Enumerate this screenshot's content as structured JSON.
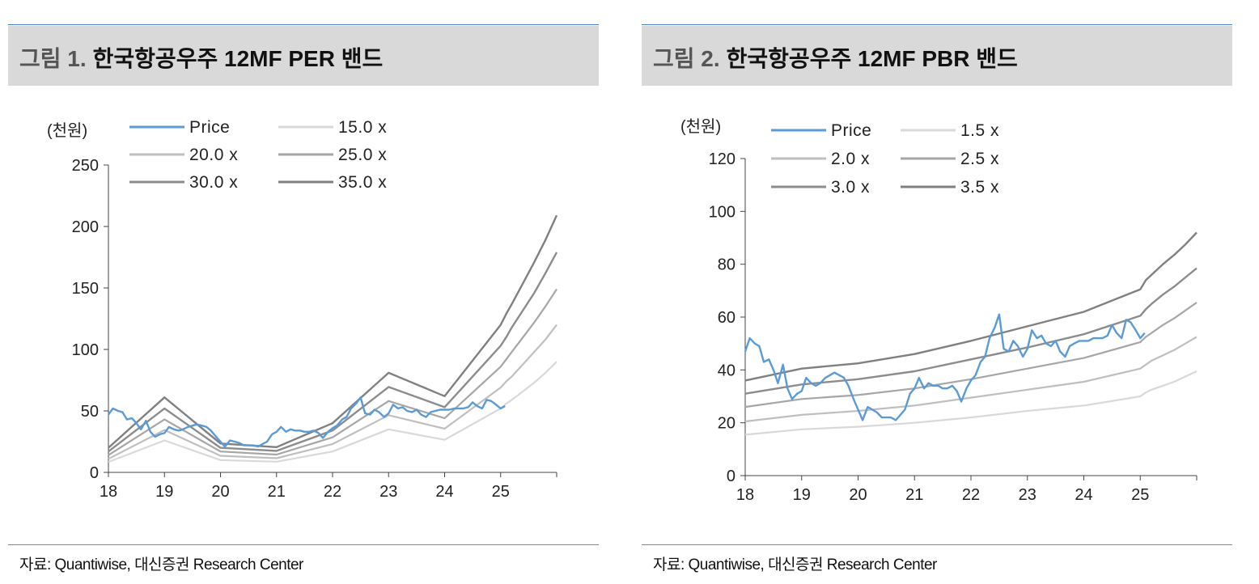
{
  "panels": [
    {
      "prefix": "그림 1.",
      "title": "한국항공우주 12MF PER 밴드",
      "source": "자료: Quantiwise, 대신증권 Research Center"
    },
    {
      "prefix": "그림 2.",
      "title": "한국항공우주 12MF PBR 밴드",
      "source": "자료: Quantiwise, 대신증권 Research Center"
    }
  ],
  "colors": {
    "price": "#5b9bd5",
    "band_light": "#d9d9d9",
    "band_mid1": "#bfbfbf",
    "band_mid2": "#a6a6a6",
    "band_dark1": "#808080",
    "band_dark2": "#7f7f7f"
  },
  "chart_data": [
    {
      "type": "line",
      "unit_label": "(천원)",
      "x_ticks": [
        "18",
        "19",
        "20",
        "21",
        "22",
        "23",
        "24",
        "25"
      ],
      "xlim": [
        2018,
        2026
      ],
      "ylim": [
        0,
        250
      ],
      "y_ticks": [
        0,
        50,
        100,
        150,
        200,
        250
      ],
      "legend_position": "top-left",
      "series": [
        {
          "name": "Price",
          "color": "#5b9bd5",
          "width": 2.4,
          "x": [
            2018.0,
            2018.08,
            2018.17,
            2018.25,
            2018.33,
            2018.42,
            2018.5,
            2018.58,
            2018.67,
            2018.75,
            2018.83,
            2018.92,
            2019.0,
            2019.08,
            2019.17,
            2019.25,
            2019.33,
            2019.42,
            2019.5,
            2019.58,
            2019.67,
            2019.75,
            2019.83,
            2019.92,
            2020.0,
            2020.08,
            2020.17,
            2020.25,
            2020.33,
            2020.42,
            2020.5,
            2020.58,
            2020.67,
            2020.75,
            2020.83,
            2020.92,
            2021.0,
            2021.08,
            2021.17,
            2021.25,
            2021.33,
            2021.42,
            2021.5,
            2021.58,
            2021.67,
            2021.75,
            2021.83,
            2021.92,
            2022.0,
            2022.08,
            2022.17,
            2022.25,
            2022.33,
            2022.42,
            2022.5,
            2022.58,
            2022.67,
            2022.75,
            2022.83,
            2022.92,
            2023.0,
            2023.08,
            2023.17,
            2023.25,
            2023.33,
            2023.42,
            2023.5,
            2023.58,
            2023.67,
            2023.75,
            2023.83,
            2023.92,
            2024.0,
            2024.08,
            2024.17,
            2024.25,
            2024.33,
            2024.42,
            2024.5,
            2024.58,
            2024.67,
            2024.75,
            2024.83,
            2024.92,
            2025.0,
            2025.08
          ],
          "y": [
            47,
            52,
            50,
            49,
            43,
            44,
            40,
            35,
            42,
            33,
            29,
            31,
            32,
            37,
            35,
            34,
            35,
            37,
            38,
            39,
            38,
            37,
            34,
            29,
            25,
            21,
            26,
            25,
            24,
            22,
            22,
            22,
            21,
            23,
            25,
            31,
            33,
            37,
            33,
            35,
            34,
            34,
            33,
            33,
            34,
            32,
            28,
            33,
            36,
            38,
            43,
            45,
            52,
            56,
            61,
            48,
            47,
            51,
            49,
            45,
            48,
            55,
            52,
            53,
            50,
            49,
            51,
            47,
            45,
            49,
            50,
            51,
            51,
            51,
            52,
            52,
            52,
            53,
            57,
            54,
            52,
            59,
            58,
            55,
            52,
            54
          ]
        },
        {
          "name": "15.0 x",
          "color": "#d9d9d9",
          "width": 2.2,
          "x": [
            2018,
            2019,
            2020,
            2021,
            2022,
            2023,
            2024,
            2025,
            2025.1,
            2025.2,
            2025.4,
            2025.6,
            2025.8,
            2026
          ],
          "y": [
            8.5,
            26,
            10,
            8.7,
            17,
            35,
            26.5,
            52,
            56,
            59,
            66,
            73,
            81,
            90
          ]
        },
        {
          "name": "20.0 x",
          "color": "#bfbfbf",
          "width": 2.2,
          "x": [
            2018,
            2019,
            2020,
            2021,
            2022,
            2023,
            2024,
            2025,
            2025.1,
            2025.2,
            2025.4,
            2025.6,
            2025.8,
            2026
          ],
          "y": [
            11,
            34.5,
            13.5,
            11.5,
            23,
            46.5,
            35.5,
            69,
            74,
            78,
            88,
            98,
            108,
            120
          ]
        },
        {
          "name": "25.0 x",
          "color": "#a6a6a6",
          "width": 2.2,
          "x": [
            2018,
            2019,
            2020,
            2021,
            2022,
            2023,
            2024,
            2025,
            2025.1,
            2025.2,
            2025.4,
            2025.6,
            2025.8,
            2026
          ],
          "y": [
            14,
            43,
            17,
            14.5,
            28.5,
            58,
            44,
            86,
            92,
            98,
            110,
            122,
            135,
            149
          ]
        },
        {
          "name": "30.0 x",
          "color": "#8c8c8c",
          "width": 2.4,
          "x": [
            2018,
            2019,
            2020,
            2021,
            2022,
            2023,
            2024,
            2025,
            2025.1,
            2025.2,
            2025.4,
            2025.6,
            2025.8,
            2026
          ],
          "y": [
            17,
            52,
            20,
            17.5,
            34,
            69.5,
            53,
            103,
            110,
            118,
            132,
            146,
            162,
            179
          ]
        },
        {
          "name": "35.0 x",
          "color": "#808080",
          "width": 2.4,
          "x": [
            2018,
            2019,
            2020,
            2021,
            2022,
            2023,
            2024,
            2025,
            2025.1,
            2025.2,
            2025.4,
            2025.6,
            2025.8,
            2026
          ],
          "y": [
            20,
            61,
            23.5,
            20.5,
            40,
            81,
            62,
            120,
            129,
            137,
            154,
            171,
            189,
            209
          ]
        }
      ],
      "legend": [
        [
          "Price",
          "15.0 x"
        ],
        [
          "20.0 x",
          "25.0 x"
        ],
        [
          "30.0 x",
          "35.0 x"
        ]
      ]
    },
    {
      "type": "line",
      "unit_label": "(천원)",
      "x_ticks": [
        "18",
        "19",
        "20",
        "21",
        "22",
        "23",
        "24",
        "25"
      ],
      "xlim": [
        2018,
        2026
      ],
      "ylim": [
        0,
        120
      ],
      "y_ticks": [
        0,
        20,
        40,
        60,
        80,
        100,
        120
      ],
      "legend_position": "top-left",
      "series": [
        {
          "name": "Price",
          "color": "#5b9bd5",
          "width": 2.4,
          "x": [
            2018.0,
            2018.08,
            2018.17,
            2018.25,
            2018.33,
            2018.42,
            2018.5,
            2018.58,
            2018.67,
            2018.75,
            2018.83,
            2018.92,
            2019.0,
            2019.08,
            2019.17,
            2019.25,
            2019.33,
            2019.42,
            2019.5,
            2019.58,
            2019.67,
            2019.75,
            2019.83,
            2019.92,
            2020.0,
            2020.08,
            2020.17,
            2020.25,
            2020.33,
            2020.42,
            2020.5,
            2020.58,
            2020.67,
            2020.75,
            2020.83,
            2020.92,
            2021.0,
            2021.08,
            2021.17,
            2021.25,
            2021.33,
            2021.42,
            2021.5,
            2021.58,
            2021.67,
            2021.75,
            2021.83,
            2021.92,
            2022.0,
            2022.08,
            2022.17,
            2022.25,
            2022.33,
            2022.42,
            2022.5,
            2022.58,
            2022.67,
            2022.75,
            2022.83,
            2022.92,
            2023.0,
            2023.08,
            2023.17,
            2023.25,
            2023.33,
            2023.42,
            2023.5,
            2023.58,
            2023.67,
            2023.75,
            2023.83,
            2023.92,
            2024.0,
            2024.08,
            2024.17,
            2024.25,
            2024.33,
            2024.42,
            2024.5,
            2024.58,
            2024.67,
            2024.75,
            2024.83,
            2024.92,
            2025.0,
            2025.08
          ],
          "y": [
            47,
            52,
            50,
            49,
            43,
            44,
            40,
            35,
            42,
            33,
            29,
            31,
            32,
            37,
            35,
            34,
            35,
            37,
            38,
            39,
            38,
            37,
            34,
            29,
            25,
            21,
            26,
            25,
            24,
            22,
            22,
            22,
            21,
            23,
            25,
            31,
            33,
            37,
            33,
            35,
            34,
            34,
            33,
            33,
            34,
            32,
            28,
            33,
            36,
            38,
            43,
            45,
            52,
            56,
            61,
            48,
            47,
            51,
            49,
            45,
            48,
            55,
            52,
            53,
            50,
            49,
            51,
            47,
            45,
            49,
            50,
            51,
            51,
            51,
            52,
            52,
            52,
            53,
            57,
            54,
            52,
            59,
            58,
            55,
            52,
            54
          ]
        },
        {
          "name": "1.5 x",
          "color": "#d9d9d9",
          "width": 2.2,
          "x": [
            2018,
            2019,
            2020,
            2021,
            2022,
            2023,
            2024,
            2025,
            2025.1,
            2025.2,
            2025.4,
            2025.6,
            2025.8,
            2026
          ],
          "y": [
            15.5,
            17.5,
            18.5,
            20,
            22,
            24.5,
            26.5,
            30,
            31.5,
            32.5,
            34,
            35.5,
            37.5,
            39.5
          ]
        },
        {
          "name": "2.0 x",
          "color": "#bfbfbf",
          "width": 2.2,
          "x": [
            2018,
            2019,
            2020,
            2021,
            2022,
            2023,
            2024,
            2025,
            2025.1,
            2025.2,
            2025.4,
            2025.6,
            2025.8,
            2026
          ],
          "y": [
            20.5,
            23,
            24.5,
            26.5,
            29.5,
            32.5,
            35.5,
            40.5,
            42,
            43.5,
            45.5,
            47.5,
            50,
            52.5
          ]
        },
        {
          "name": "2.5 x",
          "color": "#a6a6a6",
          "width": 2.2,
          "x": [
            2018,
            2019,
            2020,
            2021,
            2022,
            2023,
            2024,
            2025,
            2025.1,
            2025.2,
            2025.4,
            2025.6,
            2025.8,
            2026
          ],
          "y": [
            26,
            29,
            30.5,
            33,
            36.5,
            40.5,
            44.5,
            50.5,
            52.5,
            54,
            57,
            59.5,
            62.5,
            65.5
          ]
        },
        {
          "name": "3.0 x",
          "color": "#8c8c8c",
          "width": 2.4,
          "x": [
            2018,
            2019,
            2020,
            2021,
            2022,
            2023,
            2024,
            2025,
            2025.1,
            2025.2,
            2025.4,
            2025.6,
            2025.8,
            2026
          ],
          "y": [
            31,
            34.5,
            36.5,
            39.5,
            44,
            48.5,
            53.5,
            60.5,
            63,
            65,
            68.5,
            71.5,
            75,
            78.5
          ]
        },
        {
          "name": "3.5 x",
          "color": "#808080",
          "width": 2.4,
          "x": [
            2018,
            2019,
            2020,
            2021,
            2022,
            2023,
            2024,
            2025,
            2025.1,
            2025.2,
            2025.4,
            2025.6,
            2025.8,
            2026
          ],
          "y": [
            36,
            40.5,
            42.5,
            46,
            51,
            56.5,
            62,
            70.5,
            74,
            76,
            80,
            83.5,
            87.5,
            92
          ]
        }
      ],
      "legend": [
        [
          "Price",
          "1.5 x"
        ],
        [
          "2.0 x",
          "2.5 x"
        ],
        [
          "3.0 x",
          "3.5 x"
        ]
      ]
    }
  ]
}
